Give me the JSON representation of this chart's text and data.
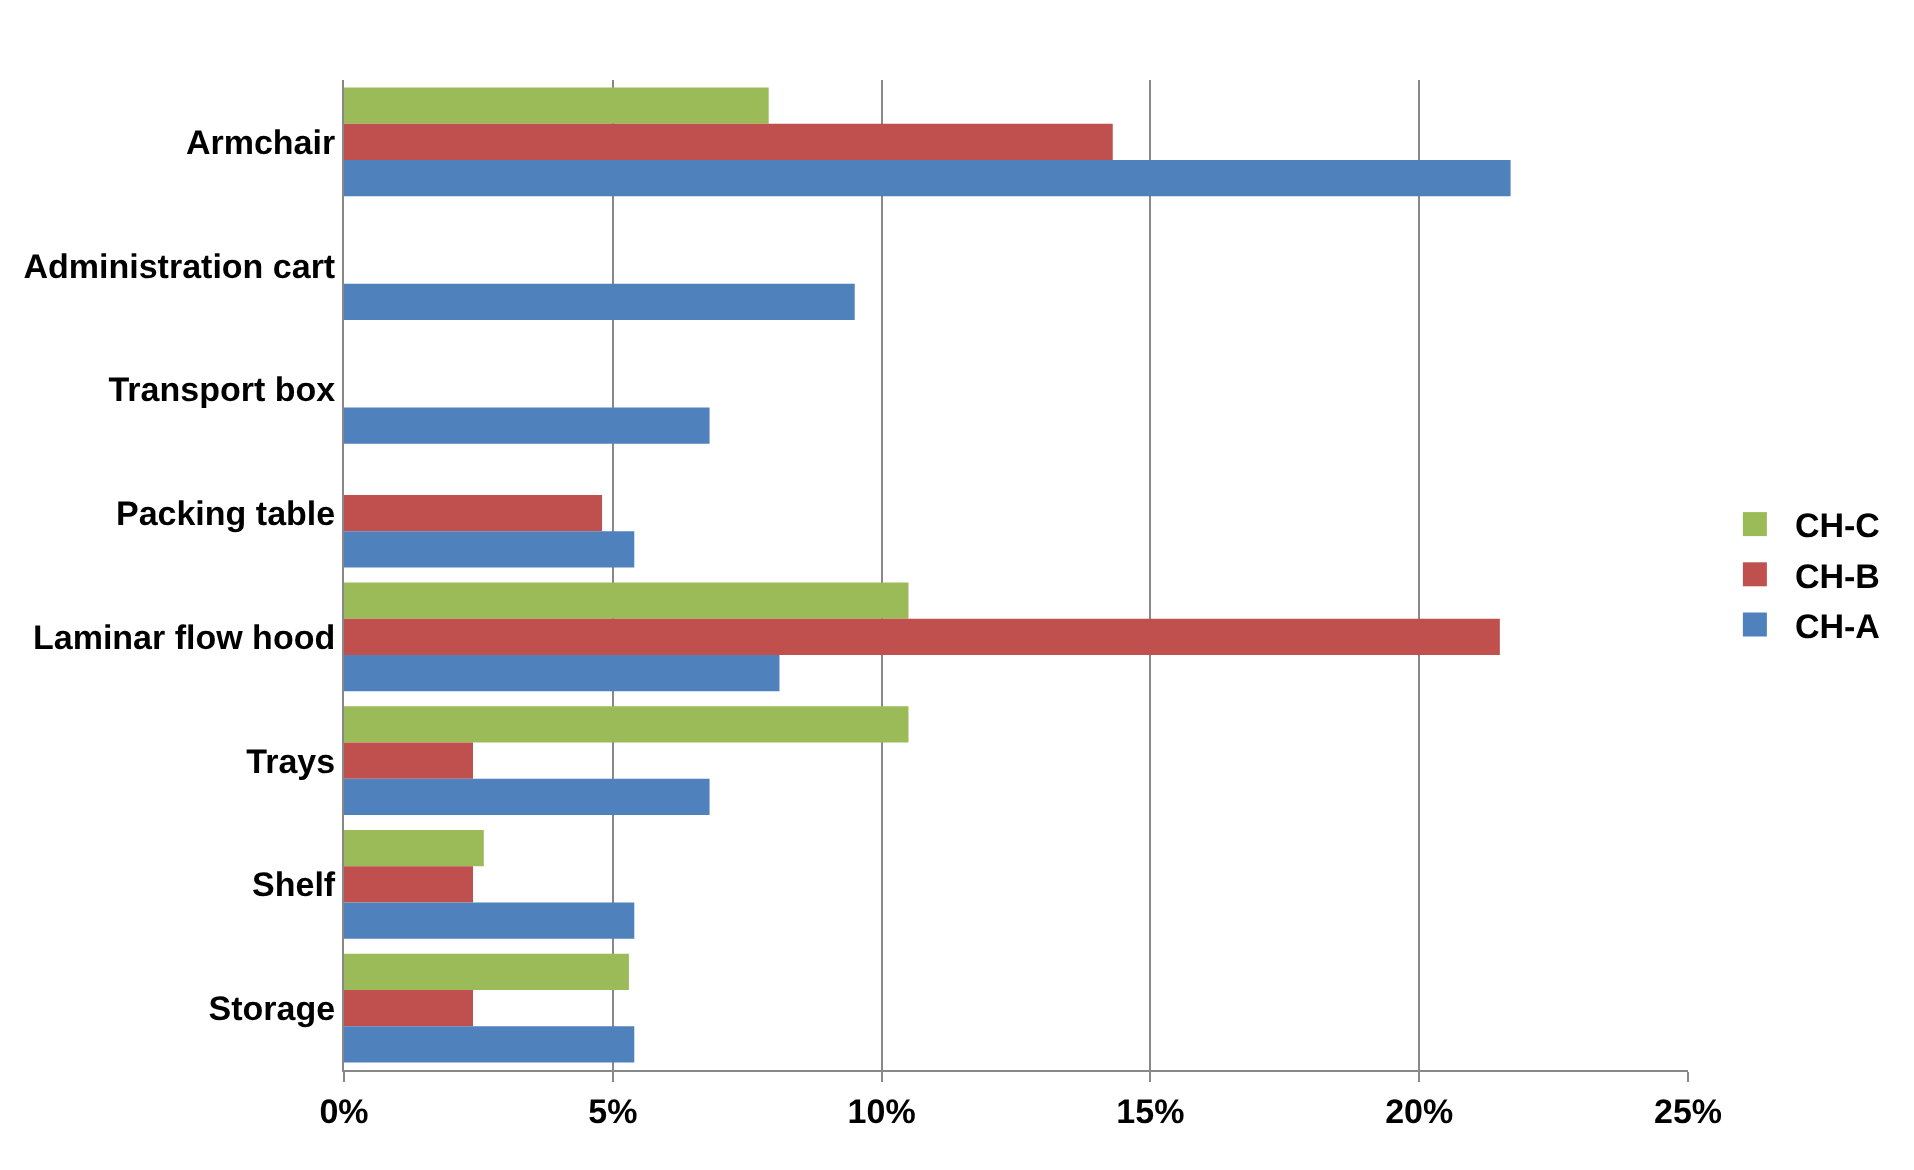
{
  "chart_data": {
    "type": "bar",
    "orientation": "horizontal",
    "categories": [
      "Armchair",
      "Administration cart",
      "Transport box",
      "Packing table",
      "Laminar flow hood",
      "Trays",
      "Shelf",
      "Storage"
    ],
    "series": [
      {
        "name": "CH-C",
        "color": "#9bbb59",
        "values": [
          7.9,
          null,
          null,
          null,
          10.5,
          10.5,
          2.6,
          5.3
        ]
      },
      {
        "name": "CH-B",
        "color": "#c0504d",
        "values": [
          14.3,
          null,
          null,
          4.8,
          21.5,
          2.4,
          2.4,
          2.4
        ]
      },
      {
        "name": "CH-A",
        "color": "#4f81bd",
        "values": [
          21.7,
          9.5,
          6.8,
          5.4,
          8.1,
          6.8,
          5.4,
          5.4
        ]
      }
    ],
    "xlim": [
      0,
      25
    ],
    "xticks": [
      {
        "value": 0,
        "label": "0%"
      },
      {
        "value": 5,
        "label": "5%"
      },
      {
        "value": 10,
        "label": "10%"
      },
      {
        "value": 15,
        "label": "15%"
      },
      {
        "value": 20,
        "label": "20%"
      },
      {
        "value": 25,
        "label": "25%"
      }
    ],
    "grid": "x",
    "legend": "right"
  }
}
